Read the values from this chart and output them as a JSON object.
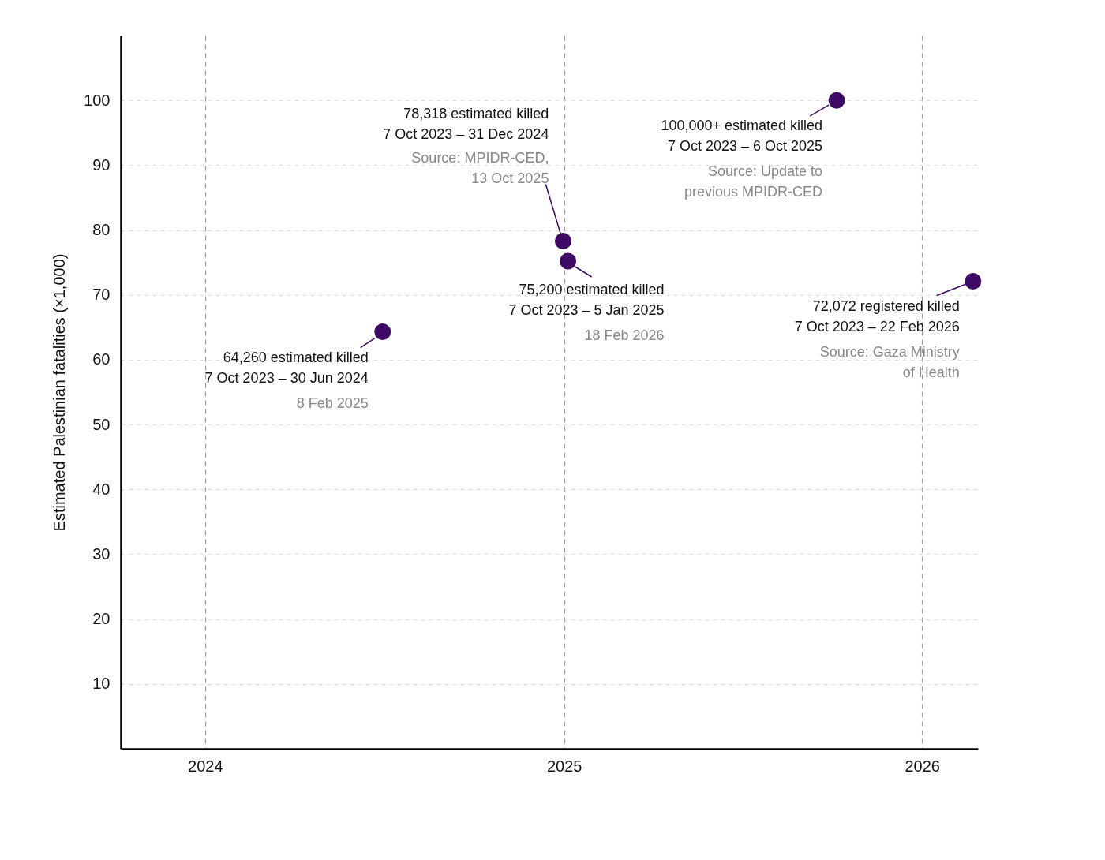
{
  "chart_data": {
    "type": "scatter",
    "ylabel": "Estimated Palestinian fatalities (×1,000)",
    "x": [
      "2024-06-30",
      "2024-12-31",
      "2025-01-05",
      "2025-10-06",
      "2026-02-22"
    ],
    "series": [
      {
        "color": "#3d0965",
        "values": [
          64.3,
          78.3,
          75.2,
          100,
          72.1
        ]
      }
    ],
    "xlim": [
      "2023-10-07",
      "2026-02-27"
    ],
    "xticks": [
      "2024",
      "2025",
      "2026"
    ],
    "ylim": [
      0,
      110
    ],
    "yticks": [
      10,
      20,
      30,
      40,
      50,
      60,
      70,
      80,
      90,
      100
    ],
    "grid": true,
    "marker": "circle",
    "annotations": [
      {
        "text": "64,260 estimated killed\n7 Oct 2023 – 30 Jun 2024",
        "x": "2024-06-30",
        "y": 64.3
      },
      "8 Feb 2025",
      "78,318 estimated killed\n7 Oct 2023 – 31 Dec 2024",
      {
        "text": "Source: MPIDR-CED,\n13 Oct 2025",
        "x": "2024-12-31",
        "y": 78.3
      },
      {
        "text": "75,200 estimated killed\n7 Oct 2023 – 5 Jan 2025",
        "x": "2025-01-05",
        "y": 75.2
      },
      "18 Feb 2026",
      {
        "text": "100,000+ estimated killed\n7 Oct 2023 – 6 Oct 2025",
        "x": "2025-10-06",
        "y": 100
      },
      "Source: Update to\nprevious MPIDR-CED",
      {
        "text": "72,072 registered killed\n7 Oct 2023 – 22 Feb 2026",
        "x": "2026-02-22",
        "y": 72.1
      },
      "Source: Gaza Ministry\nof Health"
    ]
  }
}
